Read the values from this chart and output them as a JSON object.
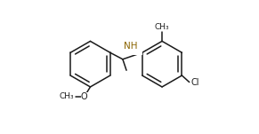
{
  "figsize": [
    2.91,
    1.51
  ],
  "dpi": 100,
  "bg": "#ffffff",
  "lc": "#1a1a1a",
  "lw": 1.1,
  "fs": 7.0,
  "nh_color": "#8B6400",
  "xlim": [
    0.0,
    1.0
  ],
  "ylim": [
    0.05,
    0.95
  ]
}
